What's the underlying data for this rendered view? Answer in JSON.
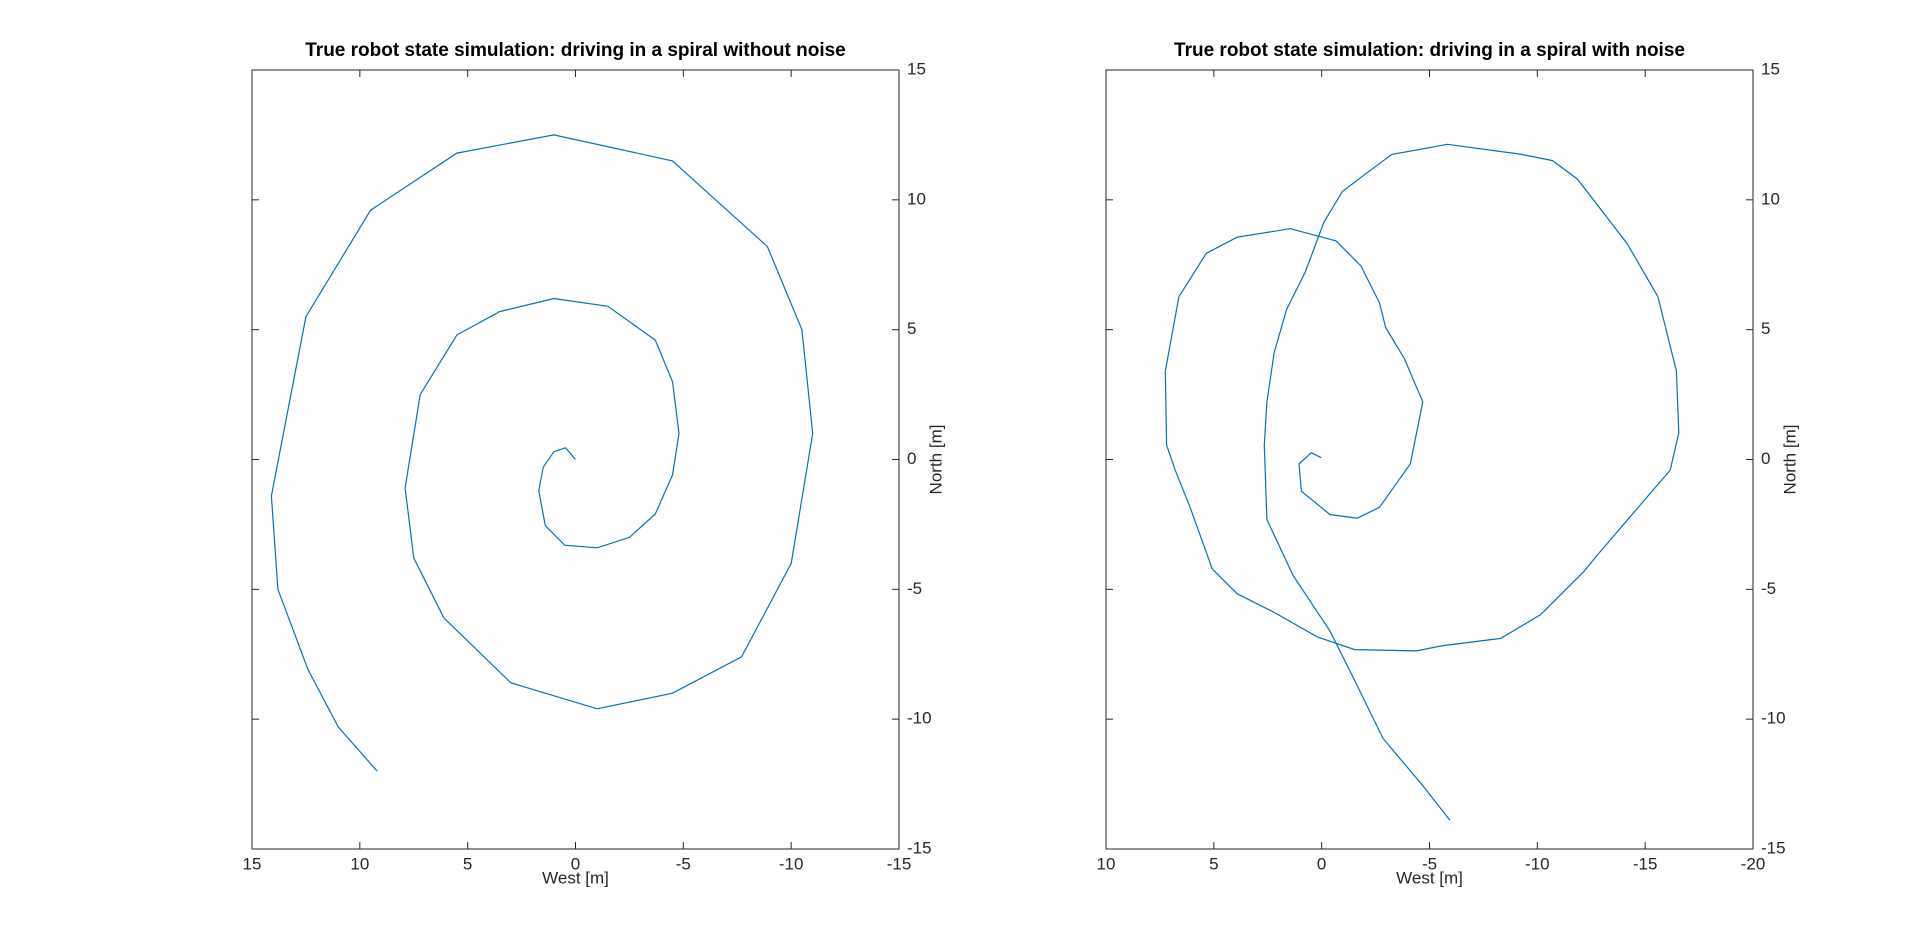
{
  "chart_data": [
    {
      "type": "line",
      "title": "True robot state simulation: driving in a spiral without noise",
      "xlabel": "West [m]",
      "ylabel": "North [m]",
      "color": "#0072bd",
      "xlim": [
        15,
        -15
      ],
      "ylim": [
        -15,
        15
      ],
      "xticks": [
        15,
        10,
        5,
        0,
        -5,
        -10,
        -15
      ],
      "yticks": [
        -15,
        -10,
        -5,
        0,
        5,
        10,
        15
      ],
      "x": [
        0,
        0.46,
        1.0,
        1.5,
        1.7,
        1.4,
        0.5,
        -1.0,
        -2.5,
        -3.7,
        -4.5,
        -4.8,
        -4.5,
        -3.7,
        -1.5,
        1.0,
        3.5,
        5.5,
        7.2,
        7.9,
        7.5,
        6.1,
        3.0,
        -1.0,
        -4.5,
        -7.7,
        -10.0,
        -11.0,
        -10.5,
        -8.9,
        -4.5,
        1.0,
        5.5,
        9.5,
        12.5,
        14.1,
        13.8,
        12.4,
        11.0,
        9.2
      ],
      "values": [
        0,
        0.45,
        0.3,
        -0.3,
        -1.2,
        -2.55,
        -3.3,
        -3.4,
        -3.0,
        -2.1,
        -0.6,
        1.0,
        3.0,
        4.6,
        5.9,
        6.2,
        5.7,
        4.8,
        2.5,
        -1.1,
        -3.8,
        -6.1,
        -8.6,
        -9.6,
        -9.0,
        -7.6,
        -4.0,
        1.0,
        5.0,
        8.2,
        11.5,
        12.5,
        11.8,
        9.6,
        5.5,
        -1.4,
        -5.0,
        -8.1,
        -10.3,
        -12.0
      ]
    },
    {
      "type": "line",
      "title": "True robot state simulation: driving in a spiral with noise",
      "xlabel": "West [m]",
      "ylabel": "North [m]",
      "color": "#0072bd",
      "xlim": [
        10,
        -20
      ],
      "ylim": [
        -15,
        15
      ],
      "xticks": [
        10,
        5,
        0,
        -5,
        -10,
        -15,
        -20
      ],
      "yticks": [
        -15,
        -10,
        -5,
        0,
        5,
        10,
        15
      ],
      "x": [
        0.02,
        0.48,
        1.05,
        0.94,
        -0.38,
        -1.65,
        -2.68,
        -4.11,
        -4.69,
        -3.83,
        -2.97,
        -2.68,
        -1.82,
        -0.67,
        1.45,
        3.92,
        5.35,
        6.62,
        7.25,
        7.19,
        6.79,
        6.1,
        5.07,
        3.92,
        2.2,
        0.19,
        -1.53,
        -4.4,
        -5.55,
        -8.3,
        -10.14,
        -12.15,
        -12.72,
        -14.44,
        -16.16,
        -16.56,
        -16.45,
        -15.59,
        -14.16,
        -11.86,
        -10.71,
        -9.28,
        -5.83,
        -3.25,
        -2.1,
        -0.96,
        -0.1,
        0.76,
        1.62,
        2.2,
        2.54,
        2.66,
        2.54,
        1.33,
        -0.38,
        -1.53,
        -2.85,
        -4.69,
        -5.95
      ],
      "values": [
        0.07,
        0.26,
        -0.17,
        -1.22,
        -2.12,
        -2.26,
        -1.84,
        -0.17,
        2.22,
        3.89,
        5.08,
        6.03,
        7.46,
        8.42,
        8.89,
        8.56,
        7.94,
        6.27,
        3.41,
        0.55,
        -0.41,
        -1.84,
        -4.22,
        -5.17,
        -5.89,
        -6.84,
        -7.32,
        -7.37,
        -7.18,
        -6.89,
        -5.98,
        -4.32,
        -3.74,
        -2.07,
        -0.41,
        1.02,
        3.41,
        6.27,
        8.32,
        10.8,
        11.51,
        11.75,
        12.14,
        11.75,
        11.04,
        10.32,
        9.13,
        7.22,
        5.79,
        4.12,
        2.22,
        0.55,
        -2.31,
        -4.46,
        -6.6,
        -8.51,
        -10.75,
        -12.56,
        -13.9
      ]
    }
  ]
}
